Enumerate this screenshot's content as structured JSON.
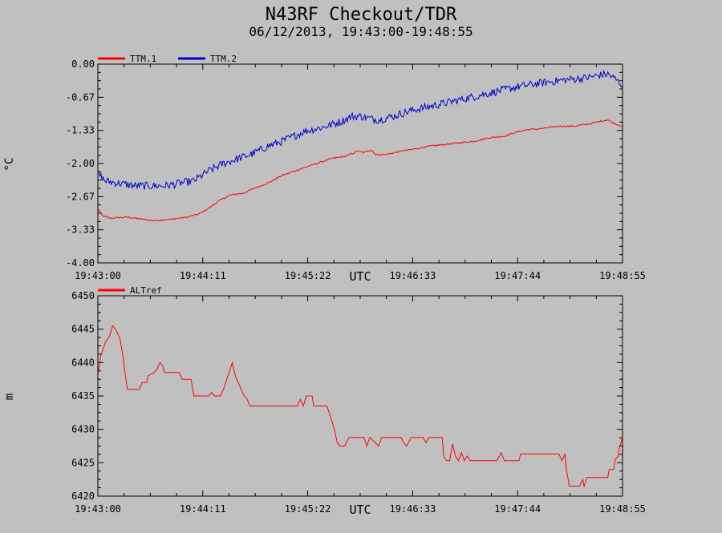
{
  "title": "N43RF Checkout/TDR",
  "subtitle": "06/12/2013, 19:43:00-19:48:55",
  "colors": {
    "background": "#c0c0c0",
    "red": "#ff0000",
    "blue": "#0000cc",
    "axis": "#000000"
  },
  "chart_data": [
    {
      "type": "line",
      "ylabel": "°C",
      "xlabel": "UTC",
      "ylim": [
        -4.0,
        0.0
      ],
      "y_ticks": [
        "0.00",
        "-0.67",
        "-1.33",
        "-2.00",
        "-2.67",
        "-3.33",
        "-4.00"
      ],
      "x_ticks": [
        "19:43:00",
        "19:44:11",
        "19:45:22",
        "19:46:33",
        "19:47:44",
        "19:48:55"
      ],
      "xlim_seconds": [
        0,
        355
      ],
      "legend_position": "top-left",
      "series": [
        {
          "name": "TTM.1",
          "color": "#ff0000",
          "noise": 0.015,
          "points": [
            [
              0,
              -2.9
            ],
            [
              3,
              -3.05
            ],
            [
              8,
              -3.1
            ],
            [
              20,
              -3.08
            ],
            [
              30,
              -3.12
            ],
            [
              38,
              -3.15
            ],
            [
              50,
              -3.12
            ],
            [
              60,
              -3.08
            ],
            [
              68,
              -3.02
            ],
            [
              75,
              -2.9
            ],
            [
              82,
              -2.75
            ],
            [
              90,
              -2.63
            ],
            [
              98,
              -2.6
            ],
            [
              106,
              -2.5
            ],
            [
              116,
              -2.38
            ],
            [
              124,
              -2.25
            ],
            [
              136,
              -2.12
            ],
            [
              146,
              -2.02
            ],
            [
              158,
              -1.9
            ],
            [
              168,
              -1.85
            ],
            [
              172,
              -1.8
            ],
            [
              176,
              -1.75
            ],
            [
              180,
              -1.78
            ],
            [
              185,
              -1.72
            ],
            [
              188,
              -1.82
            ],
            [
              195,
              -1.82
            ],
            [
              205,
              -1.75
            ],
            [
              212,
              -1.72
            ],
            [
              225,
              -1.65
            ],
            [
              240,
              -1.6
            ],
            [
              255,
              -1.55
            ],
            [
              265,
              -1.48
            ],
            [
              275,
              -1.45
            ],
            [
              282,
              -1.38
            ],
            [
              290,
              -1.32
            ],
            [
              300,
              -1.3
            ],
            [
              312,
              -1.25
            ],
            [
              322,
              -1.25
            ],
            [
              333,
              -1.2
            ],
            [
              340,
              -1.15
            ],
            [
              345,
              -1.12
            ],
            [
              350,
              -1.2
            ],
            [
              355,
              -1.25
            ]
          ]
        },
        {
          "name": "TTM.2",
          "color": "#0000cc",
          "noise": 0.08,
          "points": [
            [
              0,
              -2.2
            ],
            [
              5,
              -2.35
            ],
            [
              15,
              -2.4
            ],
            [
              25,
              -2.45
            ],
            [
              35,
              -2.45
            ],
            [
              45,
              -2.45
            ],
            [
              55,
              -2.4
            ],
            [
              65,
              -2.35
            ],
            [
              75,
              -2.15
            ],
            [
              85,
              -2.0
            ],
            [
              95,
              -1.9
            ],
            [
              105,
              -1.8
            ],
            [
              115,
              -1.65
            ],
            [
              125,
              -1.55
            ],
            [
              140,
              -1.35
            ],
            [
              155,
              -1.25
            ],
            [
              165,
              -1.15
            ],
            [
              172,
              -1.05
            ],
            [
              178,
              -1.05
            ],
            [
              185,
              -1.1
            ],
            [
              190,
              -1.12
            ],
            [
              200,
              -1.05
            ],
            [
              210,
              -0.95
            ],
            [
              225,
              -0.85
            ],
            [
              240,
              -0.75
            ],
            [
              255,
              -0.65
            ],
            [
              270,
              -0.55
            ],
            [
              285,
              -0.45
            ],
            [
              300,
              -0.38
            ],
            [
              315,
              -0.32
            ],
            [
              330,
              -0.28
            ],
            [
              340,
              -0.22
            ],
            [
              345,
              -0.2
            ],
            [
              350,
              -0.3
            ],
            [
              355,
              -0.42
            ]
          ]
        }
      ]
    },
    {
      "type": "line",
      "ylabel": "m",
      "xlabel": "UTC",
      "ylim": [
        6420,
        6450
      ],
      "y_ticks": [
        "6450",
        "6445",
        "6440",
        "6435",
        "6430",
        "6425",
        "6420"
      ],
      "x_ticks": [
        "19:43:00",
        "19:44:11",
        "19:45:22",
        "19:46:33",
        "19:47:44",
        "19:48:55"
      ],
      "xlim_seconds": [
        0,
        355
      ],
      "legend_position": "top-left",
      "series": [
        {
          "name": "ALTref",
          "color": "#ff0000",
          "points": [
            [
              0,
              6438
            ],
            [
              2,
              6441
            ],
            [
              5,
              6443
            ],
            [
              8,
              6444
            ],
            [
              10,
              6445.5
            ],
            [
              12,
              6445
            ],
            [
              15,
              6443.5
            ],
            [
              17,
              6441
            ],
            [
              18,
              6439
            ],
            [
              19,
              6437.5
            ],
            [
              20,
              6436
            ],
            [
              28,
              6436
            ],
            [
              30,
              6437
            ],
            [
              33,
              6437
            ],
            [
              34,
              6438
            ],
            [
              38,
              6438.5
            ],
            [
              40,
              6439
            ],
            [
              42,
              6440
            ],
            [
              44,
              6439.5
            ],
            [
              45,
              6438.5
            ],
            [
              55,
              6438.5
            ],
            [
              57,
              6437.5
            ],
            [
              63,
              6437.5
            ],
            [
              65,
              6435
            ],
            [
              70,
              6435
            ],
            [
              75,
              6435
            ],
            [
              77,
              6435.5
            ],
            [
              79,
              6435
            ],
            [
              83,
              6435
            ],
            [
              85,
              6436
            ],
            [
              88,
              6438
            ],
            [
              91,
              6440
            ],
            [
              93,
              6438
            ],
            [
              95,
              6437
            ],
            [
              97,
              6436
            ],
            [
              99,
              6435
            ],
            [
              101,
              6434.5
            ],
            [
              103,
              6433.5
            ],
            [
              135,
              6433.5
            ],
            [
              137,
              6434.5
            ],
            [
              139,
              6433.5
            ],
            [
              141,
              6435
            ],
            [
              145,
              6435
            ],
            [
              146,
              6433.5
            ],
            [
              155,
              6433.5
            ],
            [
              158,
              6431.5
            ],
            [
              160,
              6430
            ],
            [
              162,
              6428
            ],
            [
              164,
              6427.5
            ],
            [
              167,
              6427.5
            ],
            [
              168,
              6428
            ],
            [
              170,
              6428.8
            ],
            [
              180,
              6428.8
            ],
            [
              182,
              6427.5
            ],
            [
              184,
              6428.8
            ],
            [
              190,
              6427.5
            ],
            [
              192,
              6428.8
            ],
            [
              205,
              6428.8
            ],
            [
              207,
              6428
            ],
            [
              209,
              6427.5
            ],
            [
              212,
              6428.8
            ],
            [
              220,
              6428.8
            ],
            [
              222,
              6428
            ],
            [
              224,
              6428.8
            ],
            [
              233,
              6428.8
            ],
            [
              234,
              6426
            ],
            [
              236,
              6425.3
            ],
            [
              238,
              6425.3
            ],
            [
              240,
              6427.8
            ],
            [
              242,
              6426
            ],
            [
              244,
              6425.3
            ],
            [
              246,
              6426.5
            ],
            [
              248,
              6425.3
            ],
            [
              250,
              6426
            ],
            [
              252,
              6425.3
            ],
            [
              270,
              6425.3
            ],
            [
              273,
              6426.5
            ],
            [
              275,
              6425.3
            ],
            [
              285,
              6425.3
            ],
            [
              286,
              6426.3
            ],
            [
              295,
              6426.3
            ],
            [
              312,
              6426.3
            ],
            [
              314,
              6425.3
            ],
            [
              316,
              6426.3
            ],
            [
              317,
              6424
            ],
            [
              319,
              6421.5
            ],
            [
              326,
              6421.5
            ],
            [
              328,
              6422.5
            ],
            [
              329,
              6421.5
            ],
            [
              331,
              6422.8
            ],
            [
              345,
              6422.8
            ],
            [
              346,
              6424
            ],
            [
              349,
              6424
            ],
            [
              350,
              6425.5
            ],
            [
              352,
              6426
            ],
            [
              353,
              6427.5
            ],
            [
              354,
              6428
            ],
            [
              355,
              6429
            ]
          ]
        }
      ]
    }
  ]
}
